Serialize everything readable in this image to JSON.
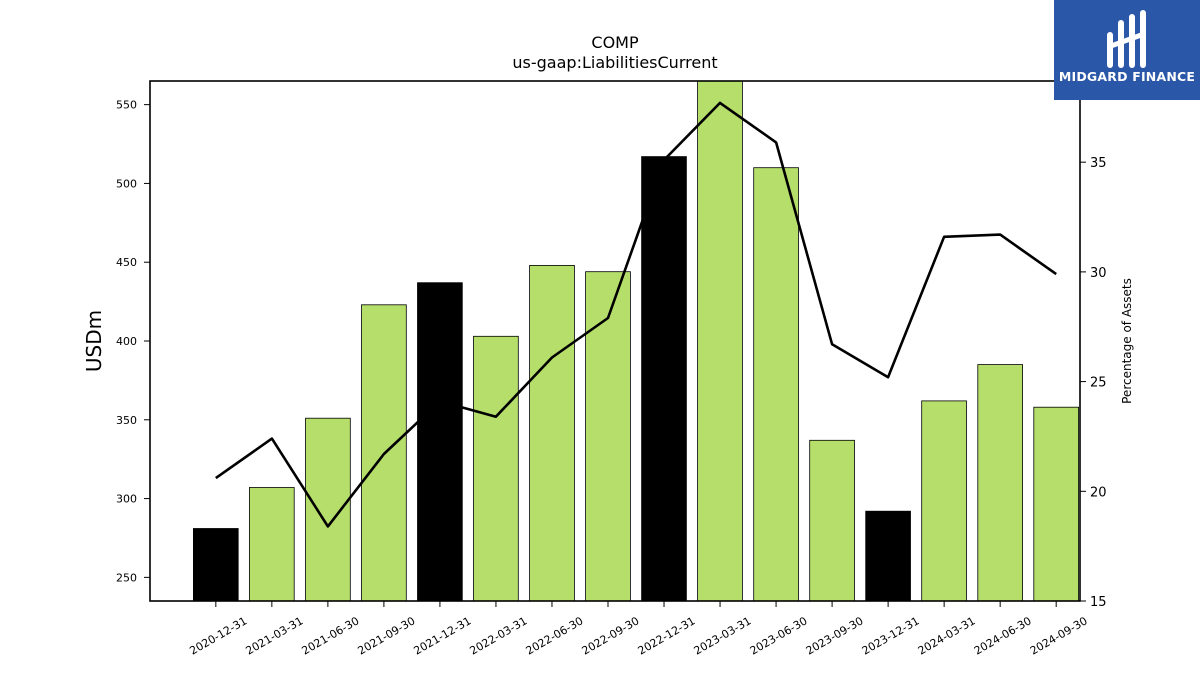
{
  "brand": {
    "name": "MIDGARD FINANCE",
    "bg_color": "#2a57a8"
  },
  "chart_data": {
    "type": "bar",
    "title": "COMP",
    "subtitle": "us-gaap:LiabilitiesCurrent",
    "ylabel": "USDm",
    "y2label": "Percentage of Assets",
    "ylim": [
      235,
      565
    ],
    "y2lim": [
      15,
      38.7
    ],
    "yticks": [
      250,
      300,
      350,
      400,
      450,
      500,
      550
    ],
    "y2ticks": [
      15,
      20,
      25,
      30,
      35
    ],
    "categories": [
      "2020-12-31",
      "2021-03-31",
      "2021-06-30",
      "2021-09-30",
      "2021-12-31",
      "2022-03-31",
      "2022-06-30",
      "2022-09-30",
      "2022-12-31",
      "2023-03-31",
      "2023-06-30",
      "2023-09-30",
      "2023-12-31",
      "2024-03-31",
      "2024-06-30",
      "2024-09-30"
    ],
    "series": [
      {
        "values": [
          281,
          307,
          351,
          423,
          437,
          403,
          448,
          444,
          517,
          565,
          510,
          337,
          292,
          362,
          385,
          358
        ],
        "colors": [
          "#000000",
          "#b5de6a",
          "#b5de6a",
          "#b5de6a",
          "#000000",
          "#b5de6a",
          "#b5de6a",
          "#b5de6a",
          "#000000",
          "#b5de6a",
          "#b5de6a",
          "#b5de6a",
          "#000000",
          "#b5de6a",
          "#b5de6a",
          "#b5de6a"
        ]
      },
      {
        "type": "line",
        "axis": "right",
        "color": "#000000",
        "values": [
          20.6,
          22.4,
          18.4,
          21.7,
          24.1,
          23.4,
          26.1,
          27.9,
          35.1,
          37.7,
          35.9,
          26.7,
          25.2,
          31.6,
          31.7,
          29.9
        ]
      }
    ],
    "grid": false,
    "legend": "none"
  }
}
